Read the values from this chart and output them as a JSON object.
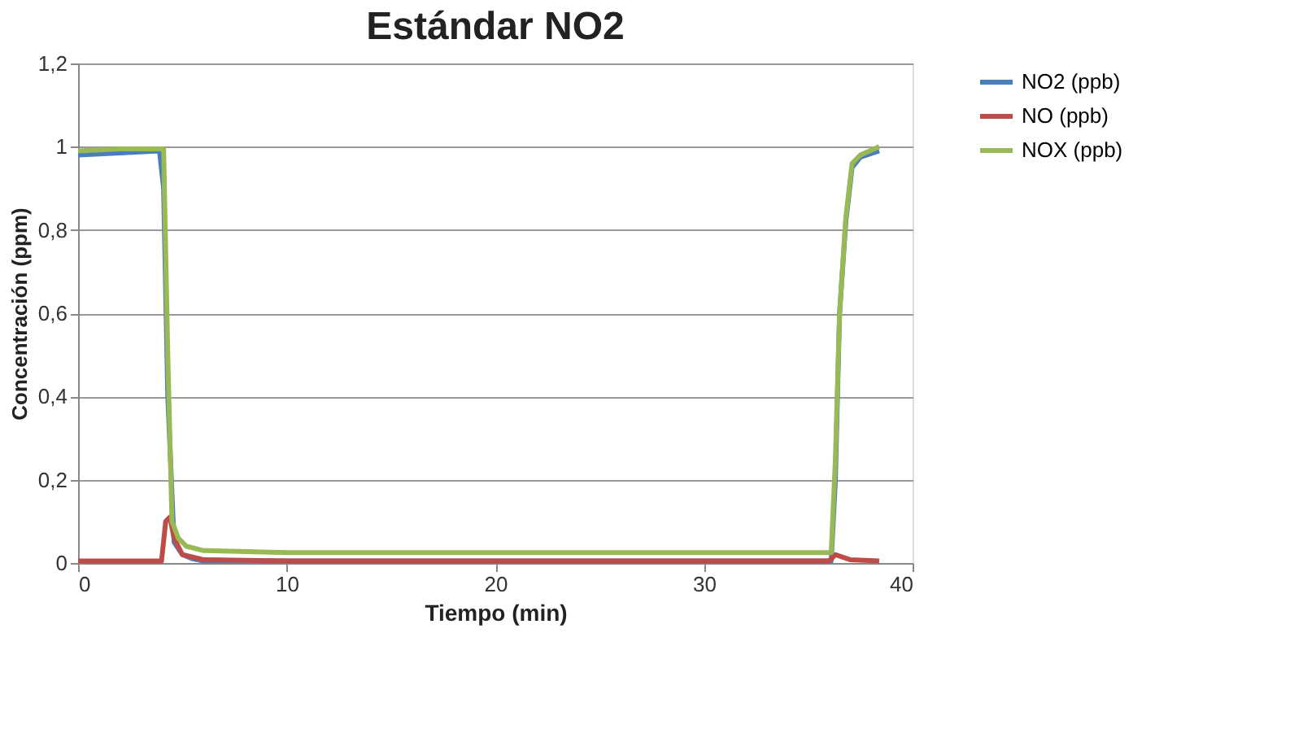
{
  "chart_data": {
    "type": "line",
    "title": "Estándar NO2",
    "xlabel": "Tiempo (min)",
    "ylabel": "Concentración (ppm)",
    "xlim": [
      0,
      40
    ],
    "xticks": [
      0,
      10,
      20,
      30,
      40
    ],
    "ylim": [
      0,
      1.2
    ],
    "yticks": [
      0,
      {
        "value": 0.2,
        "label": "0,2"
      },
      {
        "value": 0.4,
        "label": "0,4"
      },
      {
        "value": 0.6,
        "label": "0,6"
      },
      {
        "value": 0.8,
        "label": "0,8"
      },
      1,
      {
        "value": 1.2,
        "label": "1,2"
      }
    ],
    "grid": "y",
    "legend": "right",
    "marker": "none",
    "line_style": "solid",
    "series": [
      {
        "name": "NO2 (ppb)",
        "color": "#4a7ebb",
        "x": [
          0,
          2,
          3.9,
          4.1,
          4.3,
          4.6,
          5.0,
          5.5,
          6,
          10,
          20,
          30,
          36.1,
          36.3,
          36.5,
          36.8,
          37.1,
          37.5,
          38.4
        ],
        "values": [
          0.98,
          0.985,
          0.99,
          0.9,
          0.4,
          0.05,
          0.02,
          0.01,
          0.005,
          0.005,
          0.005,
          0.005,
          0.005,
          0.2,
          0.6,
          0.82,
          0.95,
          0.975,
          0.99
        ]
      },
      {
        "name": "NO (ppb)",
        "color": "#be4b48",
        "x": [
          0,
          4,
          4.2,
          4.4,
          4.6,
          5,
          6,
          10,
          20,
          30,
          36,
          36.3,
          37,
          38.4
        ],
        "values": [
          0.005,
          0.005,
          0.1,
          0.11,
          0.06,
          0.02,
          0.008,
          0.005,
          0.005,
          0.005,
          0.005,
          0.02,
          0.008,
          0.005
        ]
      },
      {
        "name": "NOX (ppb)",
        "color": "#98b954",
        "x": [
          0,
          2,
          4.1,
          4.3,
          4.5,
          4.8,
          5.2,
          6,
          10,
          20,
          30,
          36.1,
          36.3,
          36.5,
          36.8,
          37.1,
          37.5,
          38.4
        ],
        "values": [
          0.99,
          0.995,
          0.995,
          0.5,
          0.1,
          0.06,
          0.04,
          0.03,
          0.025,
          0.025,
          0.025,
          0.025,
          0.25,
          0.6,
          0.83,
          0.96,
          0.98,
          1.0
        ]
      }
    ]
  }
}
